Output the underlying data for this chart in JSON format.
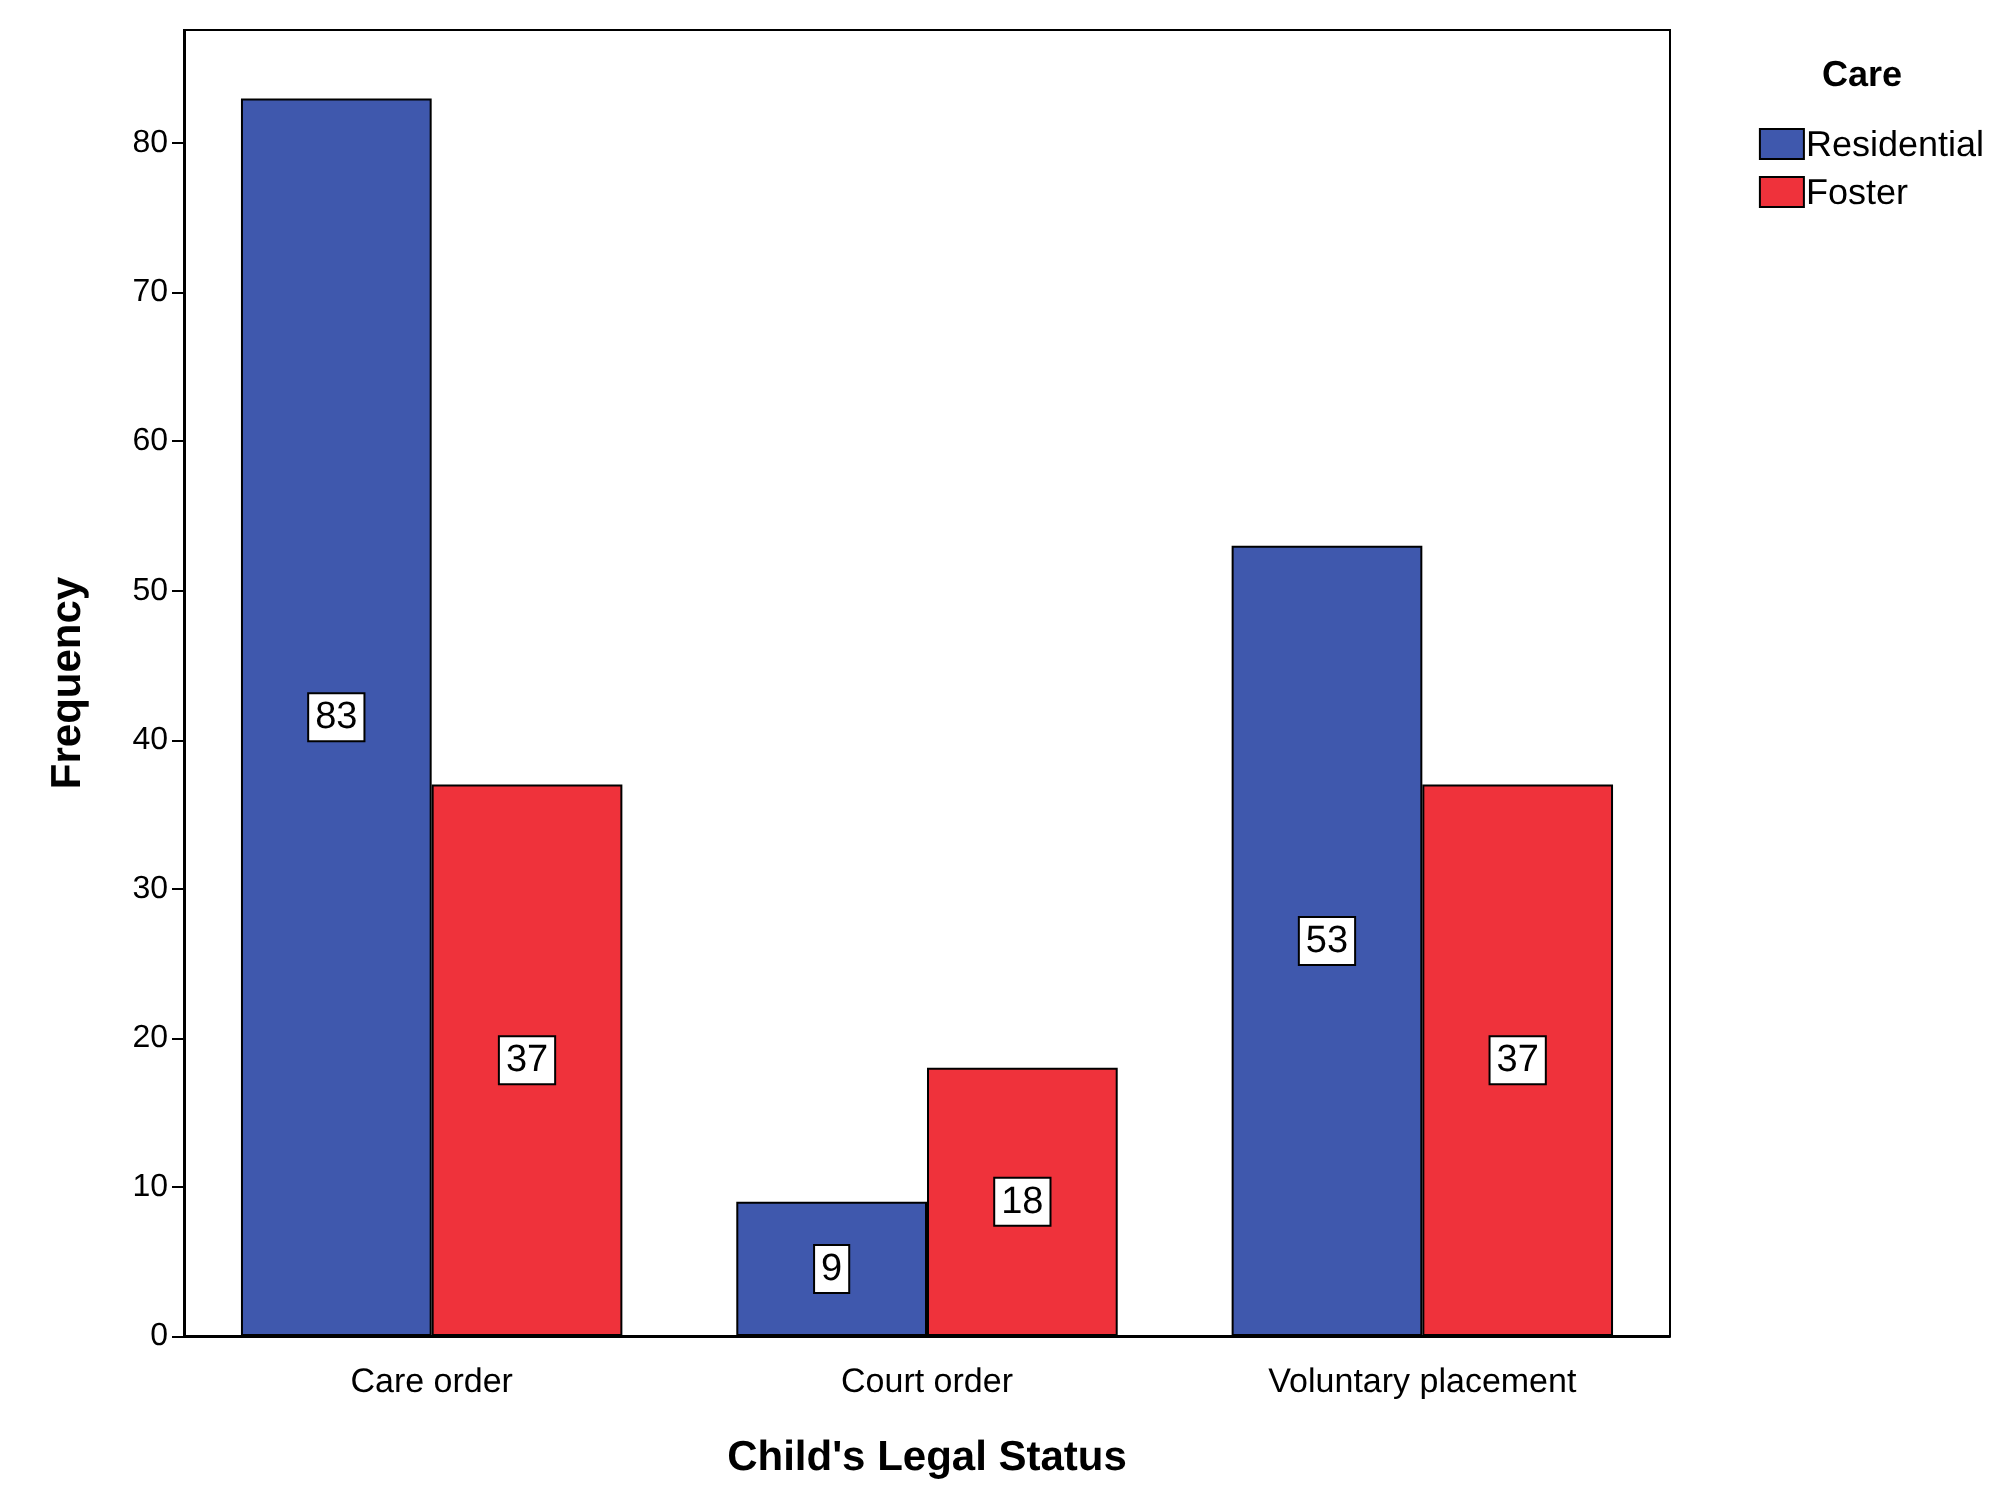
{
  "chart_data": {
    "type": "bar",
    "xlabel": "Child's Legal Status",
    "ylabel": "Frequency",
    "legend_title": "Care",
    "categories": [
      "Care order",
      "Court order",
      "Voluntary placement"
    ],
    "series": [
      {
        "name": "Residential",
        "color": "#3f58ad",
        "values": [
          83,
          9,
          53
        ]
      },
      {
        "name": "Foster",
        "color": "#ef323b",
        "values": [
          37,
          18,
          37
        ]
      }
    ],
    "ylim": [
      0,
      87.6
    ],
    "yticks": [
      0,
      10,
      20,
      30,
      40,
      50,
      60,
      70,
      80
    ],
    "grid": false,
    "legend": "top right",
    "data_labels": true
  }
}
